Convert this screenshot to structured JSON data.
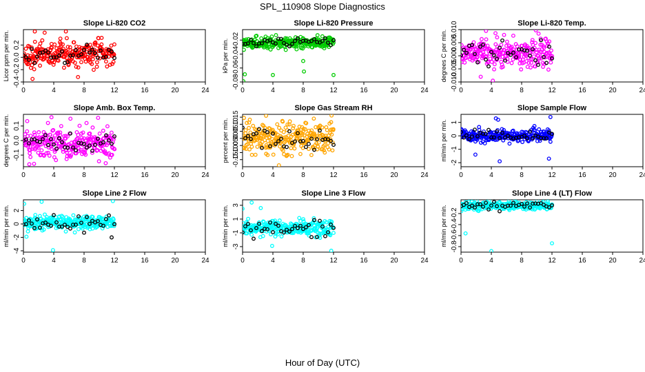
{
  "figure": {
    "main_title": "SPL_110908  Slope Diagnostics",
    "x_axis_title": "Hour of Day (UTC)"
  },
  "colors": {
    "reference": "#000000",
    "co2": "#ff0000",
    "pressure": "#00cc00",
    "temp": "#ff00ff",
    "box_temp": "#ff00ff",
    "rh": "#ffa500",
    "sample_flow": "#0000ff",
    "line_flow": "#00ffff"
  },
  "chart_data": [
    {
      "type": "scatter",
      "id": "co2",
      "title": "Slope Li-820 CO2",
      "ylabel": "Licor ppm per min.",
      "xlim": [
        0,
        24
      ],
      "xticks": [
        0,
        4,
        8,
        12,
        16,
        20,
        24
      ],
      "ylim": [
        -0.4,
        0.45
      ],
      "yticks": [
        -0.4,
        -0.2,
        0.0,
        0.2
      ],
      "ytick_labels": [
        "-0.4",
        "-0.2",
        "0.0",
        "0.2"
      ],
      "series_color_key": "co2",
      "x_range": [
        0,
        12
      ],
      "center": 0.05,
      "spread": 0.13,
      "ref_spread": 0.09,
      "outliers": [
        {
          "x": 1.5,
          "y": 0.42
        },
        {
          "x": 2.8,
          "y": 0.4
        },
        {
          "x": 5.6,
          "y": 0.42
        },
        {
          "x": 1.2,
          "y": -0.35
        },
        {
          "x": 7.2,
          "y": -0.32
        }
      ]
    },
    {
      "type": "scatter",
      "id": "pressure",
      "title": "Slope Li-820 Pressure",
      "ylabel": "kPa per min.",
      "xlim": [
        0,
        24
      ],
      "xticks": [
        0,
        4,
        8,
        12,
        16,
        20,
        24
      ],
      "ylim": [
        -0.08,
        -0.005
      ],
      "yticks": [
        -0.08,
        -0.06,
        -0.04,
        -0.02
      ],
      "ytick_labels": [
        "-0.08",
        "-0.06",
        "-0.04",
        "-0.02"
      ],
      "series_color_key": "pressure",
      "x_range": [
        0,
        12
      ],
      "center": -0.024,
      "spread": 0.005,
      "ref_spread": 0.004,
      "outliers": [
        {
          "x": 0.3,
          "y": -0.069
        },
        {
          "x": 4.0,
          "y": -0.07
        },
        {
          "x": 8.1,
          "y": -0.065
        },
        {
          "x": 12.0,
          "y": -0.07
        },
        {
          "x": 8.0,
          "y": -0.05
        },
        {
          "x": 0.1,
          "y": -0.079
        }
      ]
    },
    {
      "type": "scatter",
      "id": "temp",
      "title": "Slope Li-820 Temp.",
      "ylabel": "degrees C per min.",
      "xlim": [
        0,
        24
      ],
      "xticks": [
        0,
        4,
        8,
        12,
        16,
        20,
        24
      ],
      "ylim": [
        -0.01,
        0.01
      ],
      "yticks": [
        -0.01,
        -0.005,
        0.0,
        0.005,
        0.01
      ],
      "ytick_labels": [
        "-0.010",
        "-0.005",
        "0.000",
        "0.005",
        "0.010"
      ],
      "series_color_key": "temp",
      "x_range": [
        0,
        12
      ],
      "center": 0.0015,
      "spread": 0.0035,
      "ref_spread": 0.0025,
      "outliers": [
        {
          "x": 3.3,
          "y": 0.0095
        },
        {
          "x": 4.2,
          "y": -0.0095
        },
        {
          "x": 2.6,
          "y": -0.008
        }
      ]
    },
    {
      "type": "scatter",
      "id": "box_temp",
      "title": "Slope Amb. Box Temp.",
      "ylabel": "degrees C per min.",
      "xlim": [
        0,
        24
      ],
      "xticks": [
        0,
        4,
        8,
        12,
        16,
        20,
        24
      ],
      "ylim": [
        -0.18,
        0.18
      ],
      "yticks": [
        -0.1,
        0.0,
        0.1
      ],
      "ytick_labels": [
        "-0.1",
        "0.0",
        "0.1"
      ],
      "series_color_key": "box_temp",
      "x_range": [
        0,
        12
      ],
      "center": -0.02,
      "spread": 0.07,
      "ref_spread": 0.05,
      "outliers": [
        {
          "x": 1.4,
          "y": -0.16
        },
        {
          "x": 6.2,
          "y": 0.15
        },
        {
          "x": 3.7,
          "y": 0.16
        }
      ]
    },
    {
      "type": "scatter",
      "id": "rh",
      "title": "Slope Gas Stream RH",
      "ylabel": "percent per min.",
      "xlim": [
        0,
        24
      ],
      "xticks": [
        0,
        4,
        8,
        12,
        16,
        20,
        24
      ],
      "ylim": [
        -0.2,
        0.17
      ],
      "yticks": [
        -0.15,
        -0.1,
        -0.05,
        0.0,
        0.05,
        0.1,
        0.15
      ],
      "ytick_labels": [
        "-0.15",
        "-0.10",
        "-0.05",
        "0.00",
        "0.05",
        "0.10",
        "0.15"
      ],
      "series_color_key": "rh",
      "x_range": [
        0,
        12
      ],
      "center": 0.0,
      "spread": 0.07,
      "ref_spread": 0.055,
      "outliers": [
        {
          "x": 3.1,
          "y": 0.16
        },
        {
          "x": 4.8,
          "y": -0.19
        },
        {
          "x": 9.4,
          "y": 0.14
        }
      ]
    },
    {
      "type": "scatter",
      "id": "sample_flow",
      "title": "Slope Sample Flow",
      "ylabel": "ml/min per min.",
      "xlim": [
        0,
        24
      ],
      "xticks": [
        0,
        4,
        8,
        12,
        16,
        20,
        24
      ],
      "ylim": [
        -2.3,
        1.6
      ],
      "yticks": [
        -2,
        -1,
        0,
        1
      ],
      "ytick_labels": [
        "-2",
        "-1",
        "0",
        "1"
      ],
      "series_color_key": "sample_flow",
      "x_range": [
        0,
        12
      ],
      "center": 0.0,
      "spread": 0.3,
      "ref_spread": 0.25,
      "outliers": [
        {
          "x": 4.6,
          "y": 1.3
        },
        {
          "x": 5.1,
          "y": -1.9
        },
        {
          "x": 11.6,
          "y": -1.7
        },
        {
          "x": 11.8,
          "y": 1.4
        },
        {
          "x": 1.9,
          "y": -1.4
        },
        {
          "x": 4.9,
          "y": 1.2
        }
      ]
    },
    {
      "type": "scatter",
      "id": "line2",
      "title": "Slope Line 2 Flow",
      "ylabel": "ml/min per min.",
      "xlim": [
        0,
        24
      ],
      "xticks": [
        0,
        4,
        8,
        12,
        16,
        20,
        24
      ],
      "ylim": [
        -4.2,
        3.6
      ],
      "yticks": [
        -4,
        -2,
        0,
        2
      ],
      "ytick_labels": [
        "-4",
        "-2",
        "0",
        "2"
      ],
      "series_color_key": "line_flow",
      "x_range": [
        0,
        12
      ],
      "center": 0.2,
      "spread": 0.7,
      "ref_spread": 0.8,
      "outliers": [
        {
          "x": 2.4,
          "y": 3.3
        },
        {
          "x": 11.8,
          "y": 3.4
        },
        {
          "x": 3.9,
          "y": -3.9
        },
        {
          "x": 0.1,
          "y": 3.0
        },
        {
          "x": 0.4,
          "y": -1.9
        }
      ]
    },
    {
      "type": "scatter",
      "id": "line3",
      "title": "Slope Line 3 Flow",
      "ylabel": "ml/min per min.",
      "xlim": [
        0,
        24
      ],
      "xticks": [
        0,
        4,
        8,
        12,
        16,
        20,
        24
      ],
      "ylim": [
        -3.8,
        3.8
      ],
      "yticks": [
        -3,
        -1,
        1,
        3
      ],
      "ytick_labels": [
        "-3",
        "-1",
        "1",
        "3"
      ],
      "series_color_key": "line_flow",
      "x_range": [
        0,
        12
      ],
      "center": -0.3,
      "spread": 0.7,
      "ref_spread": 0.8,
      "outliers": [
        {
          "x": 1.2,
          "y": 3.4
        },
        {
          "x": 11.7,
          "y": -3.6
        },
        {
          "x": 3.9,
          "y": -2.9
        },
        {
          "x": 2.4,
          "y": 2.6
        },
        {
          "x": 0.0,
          "y": 2.5
        }
      ]
    },
    {
      "type": "scatter",
      "id": "line4",
      "title": "Slope Line 4 (LT) Flow",
      "ylabel": "ml/min per min.",
      "xlim": [
        0,
        24
      ],
      "xticks": [
        0,
        4,
        8,
        12,
        16,
        20,
        24
      ],
      "ylim": [
        -0.9,
        0.05
      ],
      "yticks": [
        -0.8,
        -0.6,
        -0.4,
        -0.2
      ],
      "ytick_labels": [
        "-0.8",
        "-0.6",
        "-0.4",
        "-0.2"
      ],
      "series_color_key": "line_flow",
      "x_range": [
        0,
        12
      ],
      "center": -0.06,
      "spread": 0.05,
      "ref_spread": 0.04,
      "outliers": [
        {
          "x": 0.6,
          "y": -0.56
        },
        {
          "x": 12.0,
          "y": -0.74
        },
        {
          "x": 4.0,
          "y": -0.88
        }
      ]
    }
  ]
}
